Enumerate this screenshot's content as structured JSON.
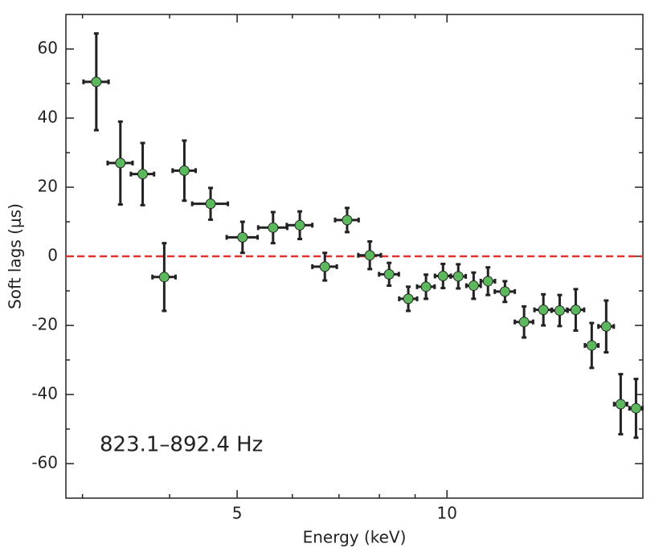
{
  "chart_data": {
    "type": "scatter",
    "xlabel": "Energy (keV)",
    "ylabel": "Soft lags (μs)",
    "annotation": "823.1–892.4 Hz",
    "x": [
      3.14,
      3.4,
      3.66,
      3.93,
      4.2,
      4.58,
      5.09,
      5.63,
      6.15,
      6.68,
      7.19,
      7.75,
      8.26,
      8.8,
      9.33,
      9.87,
      10.38,
      10.92,
      11.45,
      12.11,
      12.9,
      13.75,
      14.51,
      15.3,
      16.13,
      16.92,
      17.75,
      18.67
    ],
    "xerr": [
      0.13,
      0.14,
      0.14,
      0.15,
      0.16,
      0.27,
      0.26,
      0.27,
      0.26,
      0.27,
      0.28,
      0.29,
      0.27,
      0.26,
      0.27,
      0.26,
      0.26,
      0.26,
      0.27,
      0.4,
      0.39,
      0.4,
      0.39,
      0.43,
      0.36,
      0.43,
      0.38,
      0.4
    ],
    "y": [
      50.5,
      27,
      23.8,
      -6,
      24.8,
      15.2,
      5.5,
      8.3,
      9,
      -3,
      10.5,
      0.3,
      -5.2,
      -12.3,
      -8.8,
      -5.7,
      -5.8,
      -8.5,
      -7.2,
      -10.2,
      -19,
      -15.5,
      -15.7,
      -15.5,
      -25.8,
      -20.3,
      -42.8,
      -44
    ],
    "yerr": [
      14,
      12,
      9,
      9.8,
      8.7,
      4.6,
      4.5,
      4.5,
      4,
      4,
      3.5,
      4,
      3.3,
      3.5,
      3.5,
      3.5,
      3.5,
      3.8,
      4,
      3,
      4.5,
      4.5,
      4.5,
      6,
      6.5,
      7.5,
      8.7,
      8.5
    ],
    "color": "#5cb85c",
    "edge_color": "#222222",
    "xlim": [
      2.84,
      19.1
    ],
    "xscale": "log",
    "xticks": [
      5,
      10
    ],
    "xticks_minor": [
      3,
      4,
      6,
      7,
      8,
      9
    ],
    "ylim": [
      -70,
      70
    ],
    "yticks": [
      -60,
      -40,
      -20,
      0,
      20,
      40,
      60
    ],
    "yticks_minor": [
      -50,
      -30,
      -10,
      10,
      30,
      50
    ],
    "hline": 0,
    "hline_color": "#dd3333"
  }
}
